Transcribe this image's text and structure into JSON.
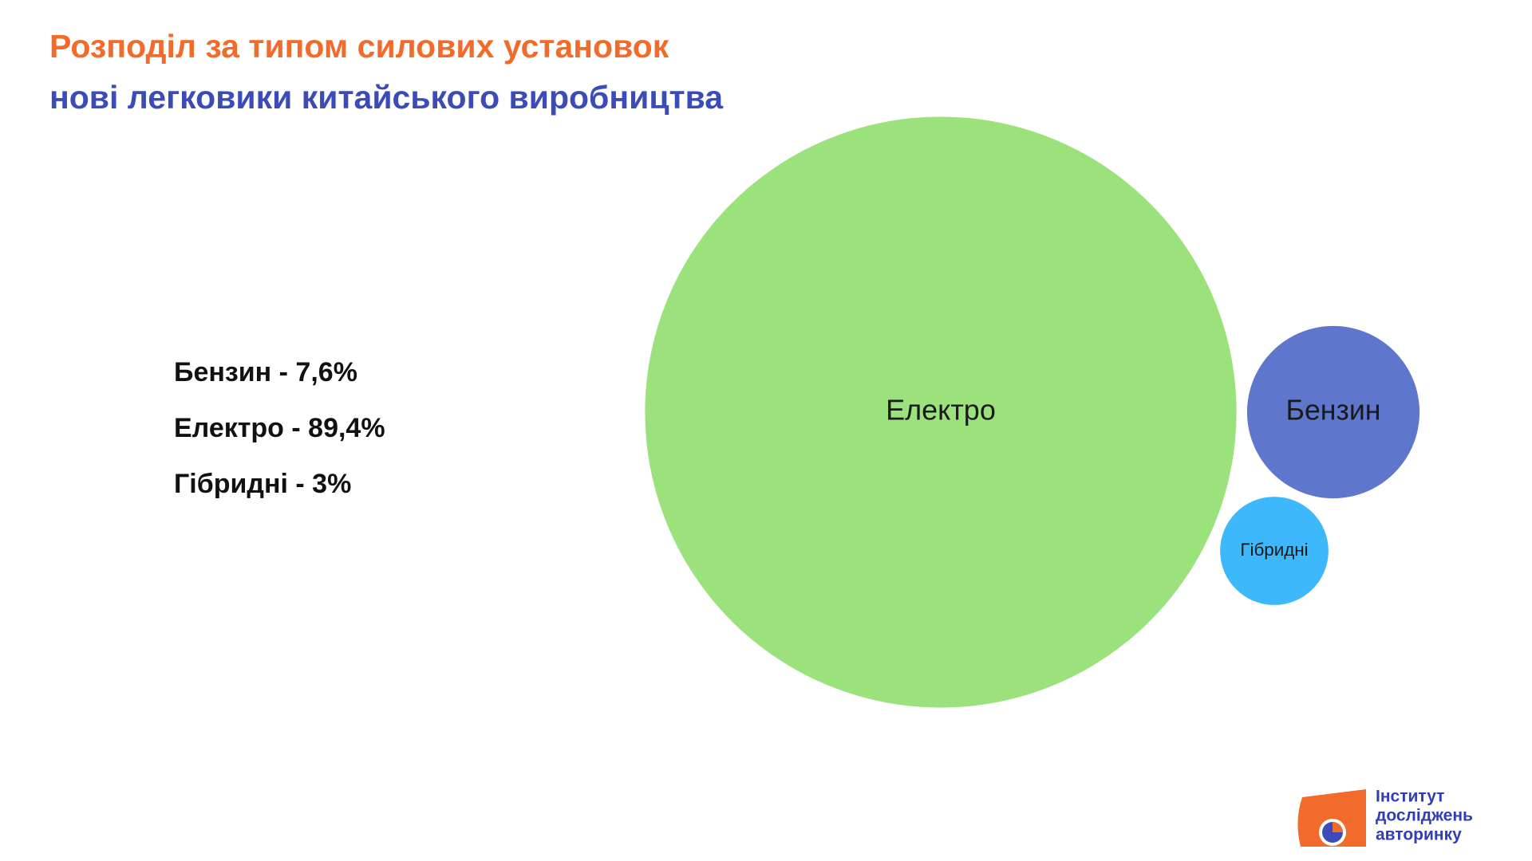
{
  "chart_data": {
    "type": "bubble",
    "title": "Розподіл за типом силових установок",
    "subtitle": "нові легковики китайського виробництва",
    "categories": [
      "Бензин",
      "Електро",
      "Гібридні"
    ],
    "values": [
      7.6,
      89.4,
      3
    ],
    "colors": [
      "#5e76cc",
      "#9be27d",
      "#3db8fb"
    ],
    "legend_items": [
      "Бензин - 7,6%",
      "Електро - 89,4%",
      "Гібридні - 3%"
    ],
    "logo": [
      "Інститут",
      "досліджень",
      "авторинку"
    ]
  }
}
